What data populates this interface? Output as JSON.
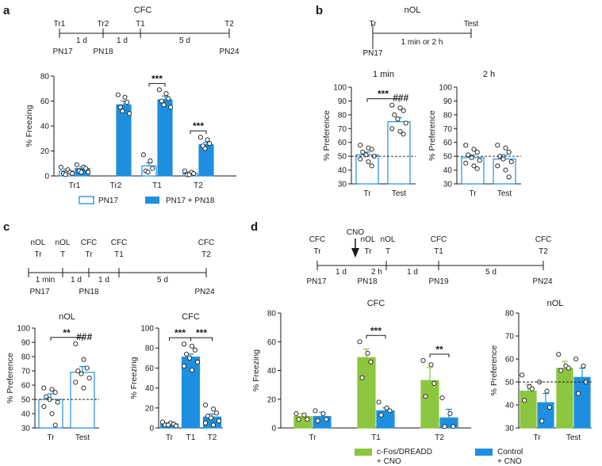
{
  "colors": {
    "blue": "#1e8fe0",
    "green": "#8cc63f",
    "dot": "#ffffff",
    "ink": "#1a1a1a"
  },
  "panels": {
    "a": {
      "label": "a",
      "timeline": {
        "title": "CFC",
        "top": [
          "Tr1",
          "Tr2",
          "T1",
          "T2"
        ],
        "gaps": [
          "1 d",
          "1 d",
          "5 d"
        ],
        "bottom": [
          "PN17",
          "PN18",
          "PN24"
        ]
      }
    },
    "b": {
      "label": "b",
      "timeline": {
        "title": "nOL",
        "top": [
          "Tr",
          "Test"
        ],
        "gap": "1 min or 2 h",
        "bottom": [
          "PN17"
        ]
      }
    },
    "c": {
      "label": "c",
      "timeline": {
        "top1": [
          "nOL",
          "nOL",
          "CFC",
          "CFC",
          "CFC"
        ],
        "top2": [
          "Tr",
          "T",
          "Tr",
          "T1",
          "T2"
        ],
        "gaps": [
          "1 min",
          "1 d",
          "1 d",
          "5 d"
        ],
        "bottom": [
          "PN17",
          "PN18",
          "PN24"
        ]
      }
    },
    "d": {
      "label": "d",
      "timeline": {
        "arrow": "CNO",
        "top1": [
          "CFC",
          "nOL",
          "nOL",
          "CFC",
          "CFC"
        ],
        "top2": [
          "Tr",
          "Tr",
          "T",
          "T1",
          "T2"
        ],
        "gaps": [
          "1 d",
          "2 h",
          "1 d",
          "5 d"
        ],
        "bottom": [
          "PN17",
          "PN18",
          "PN19",
          "PN24"
        ]
      },
      "legend": {
        "green": [
          "c-Fos/DREADD",
          "+ CNO"
        ],
        "blue": [
          "Control",
          "+ CNO"
        ]
      }
    }
  },
  "chart_data": [
    {
      "id": "a",
      "type": "bar",
      "title": "",
      "ylabel": "% Freezing",
      "ylim": [
        0,
        80
      ],
      "yticks": [
        0,
        20,
        40,
        60,
        80
      ],
      "categories": [
        "Tr1",
        "Tr2",
        "T1",
        "T2"
      ],
      "series": [
        {
          "name": "PN17",
          "style": "open-blue",
          "values": [
            4,
            null,
            8,
            2
          ],
          "errors": [
            1.5,
            null,
            2.5,
            1
          ],
          "points": [
            [
              7,
              5,
              3,
              2,
              1,
              2
            ],
            [],
            [
              17,
              12,
              6,
              4,
              3
            ],
            [
              4,
              3,
              2,
              1,
              1
            ]
          ]
        },
        {
          "name": "PN17 + PN18",
          "style": "blue",
          "values": [
            6,
            57,
            61,
            25
          ],
          "errors": [
            1.2,
            3,
            3,
            2
          ],
          "points": [
            [
              9,
              7,
              6,
              4,
              3,
              3
            ],
            [
              65,
              63,
              59,
              55,
              52,
              50
            ],
            [
              69,
              66,
              62,
              60,
              57,
              55
            ],
            [
              31,
              29,
              26,
              24,
              22
            ]
          ]
        }
      ],
      "significance": [
        {
          "label": "***",
          "category": "T1"
        },
        {
          "label": "***",
          "category": "T2"
        }
      ],
      "legend": [
        "PN17",
        "PN17 + PN18"
      ]
    },
    {
      "id": "b1",
      "type": "bar",
      "title": "1 min",
      "ylabel": "% Preference",
      "ylim": [
        30,
        100
      ],
      "yticks": [
        30,
        40,
        50,
        60,
        70,
        80,
        90,
        100
      ],
      "categories": [
        "Tr",
        "Test"
      ],
      "values": [
        51,
        75
      ],
      "errors": [
        2,
        3
      ],
      "chance": 50,
      "points": [
        [
          58,
          56,
          55,
          53,
          51,
          50,
          48,
          46,
          43
        ],
        [
          87,
          85,
          83,
          80,
          77,
          74,
          70,
          68,
          66
        ]
      ],
      "significance": [
        {
          "label": "***",
          "between": [
            "Tr",
            "Test"
          ]
        },
        {
          "label": "###",
          "category": "Test"
        }
      ]
    },
    {
      "id": "b2",
      "type": "bar",
      "title": "2 h",
      "ylabel": "% Preference",
      "ylim": [
        30,
        100
      ],
      "yticks": [
        30,
        40,
        50,
        60,
        70,
        80,
        90,
        100
      ],
      "categories": [
        "Tr",
        "Test"
      ],
      "values": [
        49,
        48
      ],
      "errors": [
        2,
        3
      ],
      "chance": 50,
      "points": [
        [
          58,
          55,
          53,
          51,
          49,
          47,
          45,
          43,
          41
        ],
        [
          58,
          56,
          53,
          50,
          48,
          46,
          43,
          40,
          35
        ]
      ],
      "significance": []
    },
    {
      "id": "c1",
      "type": "bar",
      "title": "nOL",
      "ylabel": "% Preference",
      "ylim": [
        30,
        100
      ],
      "yticks": [
        30,
        40,
        50,
        60,
        70,
        80,
        90,
        100
      ],
      "categories": [
        "Tr",
        "Test"
      ],
      "values": [
        50,
        69
      ],
      "errors": [
        4,
        4
      ],
      "chance": 50,
      "points": [
        [
          58,
          57,
          55,
          52,
          50,
          48,
          45,
          40,
          32
        ],
        [
          89,
          78,
          72,
          70,
          68,
          65,
          62,
          58
        ]
      ],
      "significance": [
        {
          "label": "**",
          "between": [
            "Tr",
            "Test"
          ]
        },
        {
          "label": "###",
          "category": "Test"
        }
      ]
    },
    {
      "id": "c2",
      "type": "bar",
      "title": "CFC",
      "ylabel": "% Freezing",
      "ylim": [
        0,
        100
      ],
      "yticks": [
        0,
        20,
        40,
        60,
        80,
        100
      ],
      "categories": [
        "Tr",
        "T1",
        "T2"
      ],
      "values": [
        4,
        71,
        11
      ],
      "errors": [
        1,
        3,
        3
      ],
      "points": [
        [
          6,
          5,
          4,
          3,
          3,
          2
        ],
        [
          84,
          82,
          78,
          74,
          70,
          66,
          62,
          58
        ],
        [
          23,
          19,
          15,
          12,
          10,
          7,
          5,
          3
        ]
      ],
      "significance": [
        {
          "label": "***",
          "between": [
            "Tr",
            "T1"
          ]
        },
        {
          "label": "***",
          "between": [
            "T1",
            "T2"
          ]
        }
      ]
    },
    {
      "id": "d1",
      "type": "bar",
      "title": "CFC",
      "ylabel": "% Freezing",
      "ylim": [
        0,
        80
      ],
      "yticks": [
        0,
        20,
        40,
        60,
        80
      ],
      "categories": [
        "Tr",
        "T1",
        "T2"
      ],
      "series": [
        {
          "name": "c-Fos/DREADD + CNO",
          "style": "green",
          "values": [
            8,
            49,
            33
          ],
          "errors": [
            2,
            6,
            9
          ],
          "points": [
            [
              10,
              9,
              6,
              6
            ],
            [
              60,
              52,
              46,
              35
            ],
            [
              47,
              44,
              31,
              22
            ]
          ]
        },
        {
          "name": "Control + CNO",
          "style": "blue",
          "values": [
            8,
            12,
            7
          ],
          "errors": [
            3,
            2,
            6
          ],
          "points": [
            [
              12,
              10,
              6,
              5
            ],
            [
              18,
              14,
              12,
              9
            ],
            [
              21,
              10,
              1,
              1
            ]
          ]
        }
      ],
      "significance": [
        {
          "label": "***",
          "category": "T1"
        },
        {
          "label": "**",
          "category": "T2"
        }
      ]
    },
    {
      "id": "d2",
      "type": "bar",
      "title": "nOL",
      "ylabel": "% Preference",
      "ylim": [
        30,
        80
      ],
      "yticks": [
        30,
        40,
        50,
        60,
        70,
        80
      ],
      "categories": [
        "Tr",
        "Test"
      ],
      "chance": 50,
      "series": [
        {
          "name": "c-Fos/DREADD + CNO",
          "style": "green",
          "values": [
            46,
            56
          ],
          "errors": [
            3,
            3
          ],
          "points": [
            [
              53,
              48,
              47,
              42
            ],
            [
              62,
              57,
              56,
              55
            ]
          ]
        },
        {
          "name": "Control + CNO",
          "style": "blue",
          "values": [
            41,
            52
          ],
          "errors": [
            4,
            4
          ],
          "points": [
            [
              50,
              46,
              39,
              33
            ],
            [
              60,
              57,
              50,
              45
            ]
          ]
        }
      ],
      "significance": []
    }
  ]
}
